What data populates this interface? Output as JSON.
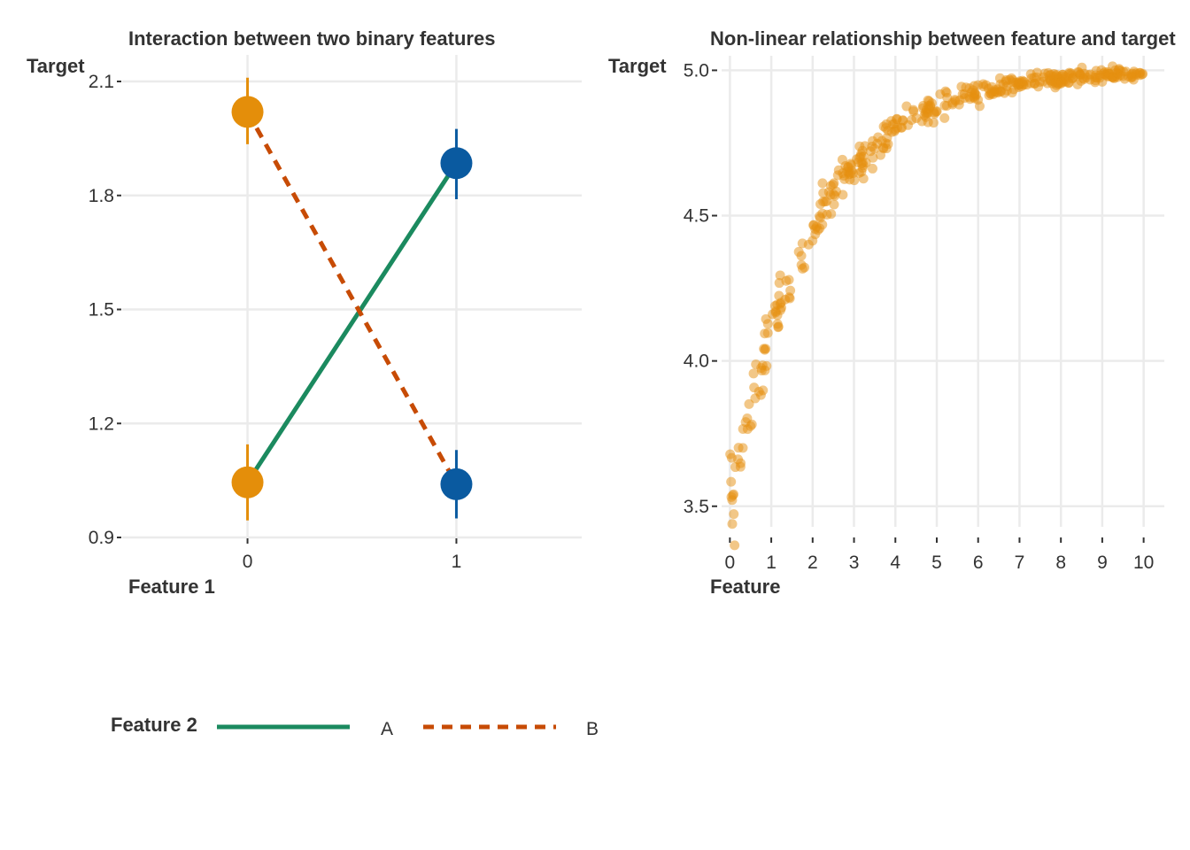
{
  "chart_data": [
    {
      "type": "line",
      "title": "Interaction between two binary features",
      "xlabel": "Feature 1",
      "ylabel": "Target",
      "x_ticks": [
        "0",
        "1"
      ],
      "y_ticks": [
        "0.9",
        "1.2",
        "1.5",
        "1.8",
        "2.1"
      ],
      "xlim": [
        -0.6,
        1.6
      ],
      "ylim": [
        0.9,
        2.1
      ],
      "legend": {
        "title": "Feature 2",
        "position": "bottom"
      },
      "series": [
        {
          "name": "A",
          "color": "#1b8a5f",
          "linestyle": "solid",
          "x": [
            0,
            1
          ],
          "y": [
            1.045,
            1.885
          ]
        },
        {
          "name": "B",
          "color": "#c74b05",
          "linestyle": "dashed",
          "x": [
            0,
            1
          ],
          "y": [
            2.02,
            1.04
          ]
        }
      ],
      "points": [
        {
          "x": 0,
          "y": 2.02,
          "ymin": 1.935,
          "ymax": 2.11,
          "color": "#e48e0a"
        },
        {
          "x": 0,
          "y": 1.045,
          "ymin": 0.945,
          "ymax": 1.145,
          "color": "#e48e0a"
        },
        {
          "x": 1,
          "y": 1.885,
          "ymin": 1.79,
          "ymax": 1.975,
          "color": "#0a5aa0"
        },
        {
          "x": 1,
          "y": 1.04,
          "ymin": 0.95,
          "ymax": 1.13,
          "color": "#0a5aa0"
        }
      ]
    },
    {
      "type": "scatter",
      "title": "Non-linear relationship between feature and target",
      "xlabel": "Feature",
      "ylabel": "Target",
      "x_ticks": [
        "0",
        "1",
        "2",
        "3",
        "4",
        "5",
        "6",
        "7",
        "8",
        "9",
        "10"
      ],
      "y_ticks": [
        "3.5",
        "4.0",
        "4.5",
        "5.0"
      ],
      "xlim": [
        -0.2,
        10.5
      ],
      "ylim": [
        3.35,
        5.05
      ],
      "point_color": "#e6900f",
      "point_opacity": 0.5,
      "n_points": 400,
      "relationship": "y = 5 - 1.5 * exp(-x / 2)",
      "x_range": [
        0,
        10
      ],
      "noise_sd": 0.06,
      "series": [
        {
          "x": [
            0,
            0.5,
            1,
            1.5,
            2,
            2.5,
            3,
            3.5,
            4,
            4.5,
            5,
            5.5,
            6,
            6.5,
            7,
            7.5,
            8,
            8.5,
            9,
            9.5,
            10
          ],
          "y": [
            3.5,
            3.83,
            4.09,
            4.29,
            4.45,
            4.57,
            4.67,
            4.74,
            4.8,
            4.84,
            4.88,
            4.9,
            4.93,
            4.94,
            4.96,
            4.96,
            4.97,
            4.98,
            4.98,
            4.99,
            4.99
          ]
        }
      ]
    }
  ]
}
